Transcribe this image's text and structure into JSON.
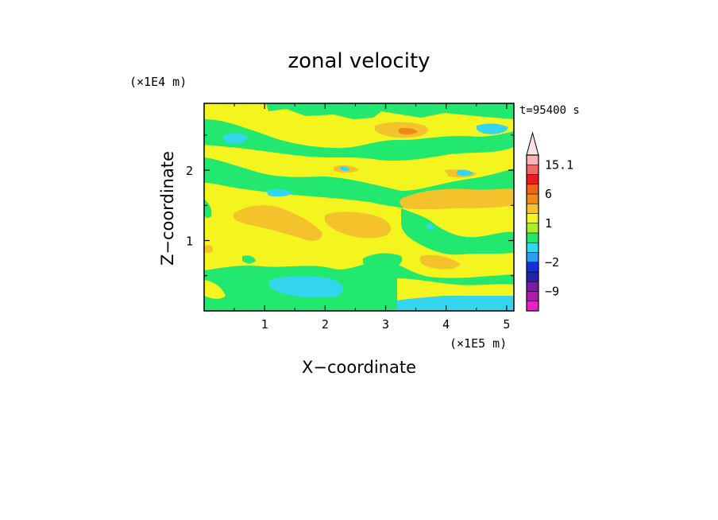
{
  "chart_data": {
    "type": "heatmap",
    "title": "zonal velocity",
    "xlabel": "X−coordinate",
    "ylabel": "Z−coordinate",
    "x_unit": "(×1E5 m)",
    "y_unit": "(×1E4 m)",
    "time_label": "t=95400 s",
    "xlim": [
      0,
      5.12
    ],
    "ylim": [
      0,
      2.95
    ],
    "x_ticks": [
      "1",
      "2",
      "3",
      "4",
      "5"
    ],
    "x_tick_values": [
      1,
      2,
      3,
      4,
      5
    ],
    "y_ticks": [
      "1",
      "2"
    ],
    "y_tick_values": [
      1,
      2
    ],
    "colorbar": {
      "labels": [
        "15.1",
        "6",
        "1",
        "−2",
        "−9"
      ],
      "label_values": [
        15.1,
        6,
        1,
        -2,
        -9
      ],
      "levels": [
        {
          "lo": -15,
          "hi": -12,
          "color": "#ee1fc8"
        },
        {
          "lo": -12,
          "hi": -9,
          "color": "#b01aa8"
        },
        {
          "lo": -9,
          "hi": -6,
          "color": "#7a1aa6"
        },
        {
          "lo": -6,
          "hi": -4,
          "color": "#2322a8"
        },
        {
          "lo": -4,
          "hi": -2,
          "color": "#1032d8"
        },
        {
          "lo": -2,
          "hi": -1,
          "color": "#2a9ef0"
        },
        {
          "lo": -1,
          "hi": 0,
          "color": "#33d6ee"
        },
        {
          "lo": 0,
          "hi": 0.5,
          "color": "#22e870"
        },
        {
          "lo": 0.5,
          "hi": 1,
          "color": "#a8ee2a"
        },
        {
          "lo": 1,
          "hi": 2,
          "color": "#f4f41e"
        },
        {
          "lo": 2,
          "hi": 4,
          "color": "#f4c22a"
        },
        {
          "lo": 4,
          "hi": 6,
          "color": "#ee8a16"
        },
        {
          "lo": 6,
          "hi": 9,
          "color": "#ee6418"
        },
        {
          "lo": 9,
          "hi": 12,
          "color": "#e81e1e"
        },
        {
          "lo": 12,
          "hi": 15.1,
          "color": "#ee6a6a"
        },
        {
          "lo": 15.1,
          "hi": 18,
          "color": "#f7b5b5"
        }
      ],
      "extend_top": true,
      "extend_top_color": "#fbe3e3"
    },
    "legend": "right",
    "grid": false
  }
}
